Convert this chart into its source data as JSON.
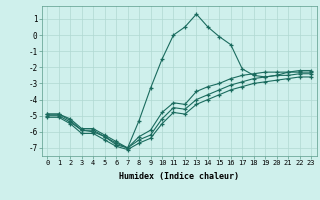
{
  "xlabel": "Humidex (Indice chaleur)",
  "bg_color": "#cff0ec",
  "grid_color": "#b0d8d2",
  "line_color": "#1a6b5e",
  "xlim": [
    -0.5,
    23.5
  ],
  "ylim": [
    -7.5,
    1.8
  ],
  "yticks": [
    1,
    0,
    -1,
    -2,
    -3,
    -4,
    -5,
    -6,
    -7
  ],
  "xticks": [
    0,
    1,
    2,
    3,
    4,
    5,
    6,
    7,
    8,
    9,
    10,
    11,
    12,
    13,
    14,
    15,
    16,
    17,
    18,
    19,
    20,
    21,
    22,
    23
  ],
  "curve1_x": [
    0,
    1,
    2,
    3,
    4,
    5,
    6,
    7,
    8,
    9,
    10,
    11,
    12,
    13,
    14,
    15,
    16,
    17,
    18,
    19,
    20,
    21,
    22,
    23
  ],
  "curve1_y": [
    -4.9,
    -4.9,
    -5.2,
    -5.8,
    -5.8,
    -6.2,
    -6.6,
    -7.0,
    -6.3,
    -5.9,
    -4.8,
    -4.2,
    -4.3,
    -3.5,
    -3.2,
    -3.0,
    -2.7,
    -2.5,
    -2.4,
    -2.3,
    -2.3,
    -2.3,
    -2.2,
    -2.2
  ],
  "curve2_x": [
    0,
    1,
    2,
    3,
    4,
    5,
    6,
    7,
    8,
    9,
    10,
    11,
    12,
    13,
    14,
    15,
    16,
    17,
    18,
    19,
    20,
    21,
    22,
    23
  ],
  "curve2_y": [
    -5.0,
    -5.0,
    -5.4,
    -5.9,
    -5.9,
    -6.3,
    -6.8,
    -7.0,
    -6.5,
    -6.2,
    -5.2,
    -4.5,
    -4.6,
    -4.0,
    -3.7,
    -3.4,
    -3.1,
    -2.9,
    -2.7,
    -2.6,
    -2.5,
    -2.5,
    -2.4,
    -2.4
  ],
  "curve3_x": [
    0,
    1,
    2,
    3,
    4,
    5,
    6,
    7,
    8,
    9,
    10,
    11,
    12,
    13,
    14,
    15,
    16,
    17,
    18,
    19,
    20,
    21,
    22,
    23
  ],
  "curve3_y": [
    -5.1,
    -5.1,
    -5.5,
    -6.1,
    -6.1,
    -6.5,
    -6.9,
    -7.1,
    -6.7,
    -6.4,
    -5.5,
    -4.8,
    -4.9,
    -4.3,
    -4.0,
    -3.7,
    -3.4,
    -3.2,
    -3.0,
    -2.9,
    -2.8,
    -2.7,
    -2.6,
    -2.6
  ],
  "curve4_x": [
    0,
    1,
    2,
    3,
    4,
    5,
    6,
    7,
    8,
    9,
    10,
    11,
    12,
    13,
    14,
    15,
    16,
    17,
    18,
    19,
    20,
    21,
    22,
    23
  ],
  "curve4_y": [
    -4.9,
    -4.9,
    -5.3,
    -5.9,
    -6.0,
    -6.3,
    -6.7,
    -7.0,
    -5.3,
    -3.3,
    -1.5,
    0.0,
    0.5,
    1.3,
    0.5,
    -0.1,
    -0.6,
    -2.1,
    -2.5,
    -2.6,
    -2.5,
    -2.3,
    -2.3,
    -2.3
  ]
}
